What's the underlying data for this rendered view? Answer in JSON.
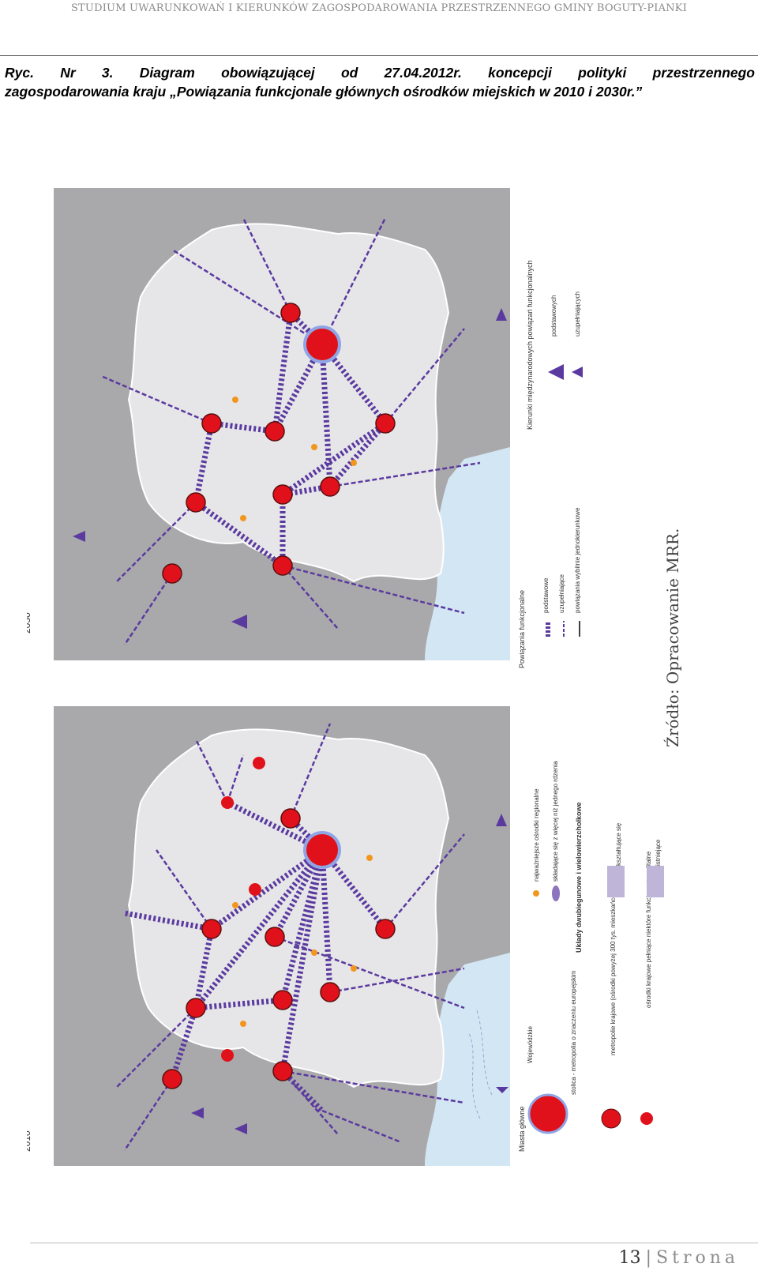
{
  "header": {
    "title": "STUDIUM UWARUNKOWAŃ I KIERUNKÓW ZAGOSPODAROWANIA PRZESTRZENNEGO GMINY BOGUTY-PIANKI"
  },
  "caption": {
    "line1": "Ryc. Nr 3. Diagram obowiązującej od 27.04.2012r. koncepcji polityki przestrzennego",
    "line2": "zagospodarowania kraju „Powiązania funkcjonale głównych ośrodków miejskich w 2010 i 2030r.”"
  },
  "figure": {
    "label_2030": "2030",
    "label_2010": "2010",
    "source": "Źródło: Opracowanie MRR.",
    "legend": {
      "main_cities": {
        "title": "Miasta główne",
        "capital": "stolica - metropolia o znaczeniu europejskim",
        "voivodeship_title": "Wojewódzkie",
        "national_metropolis": "metropolie krajowe (ośrodki powyżej 300 tys. mieszkańców)",
        "national_centers": "ośrodki krajowe pełniące niektóre funkcje metropolitalne"
      },
      "regional": {
        "largest": "najważniejsze ośrodki regionalne",
        "multi_core": "składające się z więcej niż jednego rdzenia"
      },
      "systems": {
        "title": "Układy dwubiegunowe i wielowierzchołkowe",
        "forming": "kształtujące się",
        "existing": "istniejące"
      },
      "links": {
        "title": "Powiązania funkcjonalne",
        "basic": "podstawowe",
        "complementary": "uzupełniające",
        "one_way": "powiązania wybitnie jednokierunkowe"
      },
      "directions": {
        "title": "Kierunki międzynarodowych powiązań funkcjonalnych",
        "basic": "podstawowych",
        "complementary": "uzupełniających"
      }
    }
  },
  "footer": {
    "page_number": "13",
    "page_word": "Strona"
  },
  "colors": {
    "sea": "#d3e6f4",
    "land_out": "#a9a9ab",
    "land_pl": "#e6e6e8",
    "link": "#5b3aa0",
    "city": "#e0111a",
    "regional": "#f2961e"
  }
}
